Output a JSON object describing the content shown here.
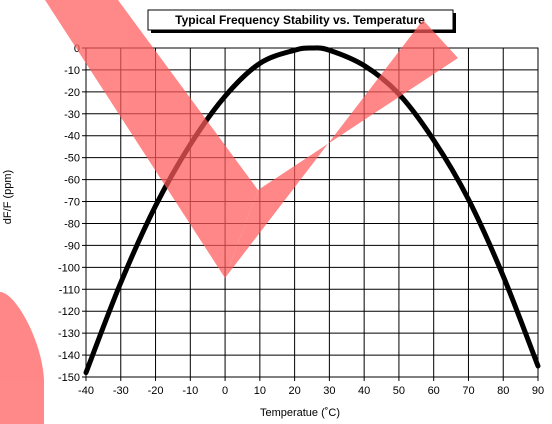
{
  "chart_data": {
    "type": "line",
    "title": "Typical Frequency Stability vs. Temperature",
    "xlabel": "Temperatue (˚C)",
    "ylabel": "dF/F (ppm)",
    "xlim": [
      -40,
      90
    ],
    "ylim": [
      -150,
      0
    ],
    "xticks": [
      -40,
      -30,
      -20,
      -10,
      0,
      10,
      20,
      30,
      40,
      50,
      60,
      70,
      80,
      90
    ],
    "yticks": [
      0,
      -10,
      -20,
      -30,
      -40,
      -50,
      -60,
      -70,
      -80,
      -90,
      -100,
      -110,
      -120,
      -130,
      -140,
      -150
    ],
    "grid": true,
    "legend": "none",
    "series": [
      {
        "color": "#000000",
        "x": [
          -40,
          -30,
          -20,
          -10,
          0,
          10,
          20,
          25,
          30,
          40,
          50,
          60,
          70,
          80,
          90
        ],
        "y": [
          -148,
          -107,
          -72,
          -44,
          -22,
          -7,
          -1,
          0,
          -1,
          -8,
          -21,
          -42,
          -69,
          -104,
          -145
        ]
      }
    ],
    "watermark": {
      "description": "large translucent red check-mark style watermark overlay",
      "color": "#ff5a5a"
    }
  }
}
